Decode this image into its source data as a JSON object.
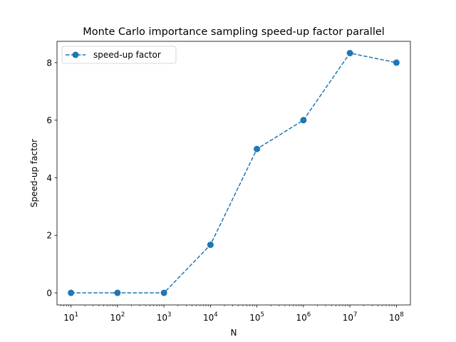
{
  "chart_data": {
    "type": "line",
    "title": "Monte Carlo importance sampling speed-up factor parallel",
    "xlabel": "N",
    "ylabel": "Speed-up factor",
    "xscale": "log",
    "x": [
      10,
      100,
      1000,
      10000,
      100000,
      1000000,
      10000000,
      100000000
    ],
    "xlim": [
      5,
      200000000
    ],
    "ylim": [
      -0.42,
      8.74
    ],
    "xticks": [
      {
        "value": 10,
        "base": "10",
        "exp": "1"
      },
      {
        "value": 100,
        "base": "10",
        "exp": "2"
      },
      {
        "value": 1000,
        "base": "10",
        "exp": "3"
      },
      {
        "value": 10000,
        "base": "10",
        "exp": "4"
      },
      {
        "value": 100000,
        "base": "10",
        "exp": "5"
      },
      {
        "value": 1000000,
        "base": "10",
        "exp": "6"
      },
      {
        "value": 10000000,
        "base": "10",
        "exp": "7"
      },
      {
        "value": 100000000,
        "base": "10",
        "exp": "8"
      }
    ],
    "yticks": [
      0,
      2,
      4,
      6,
      8
    ],
    "grid": false,
    "legend_position": "upper-left",
    "series": [
      {
        "name": "speed-up factor",
        "values": [
          0.0,
          0.0,
          0.0,
          1.67,
          5.0,
          6.0,
          8.33,
          8.0
        ],
        "color": "#1f77b4",
        "line_style": "dashed",
        "marker": "circle"
      }
    ]
  }
}
